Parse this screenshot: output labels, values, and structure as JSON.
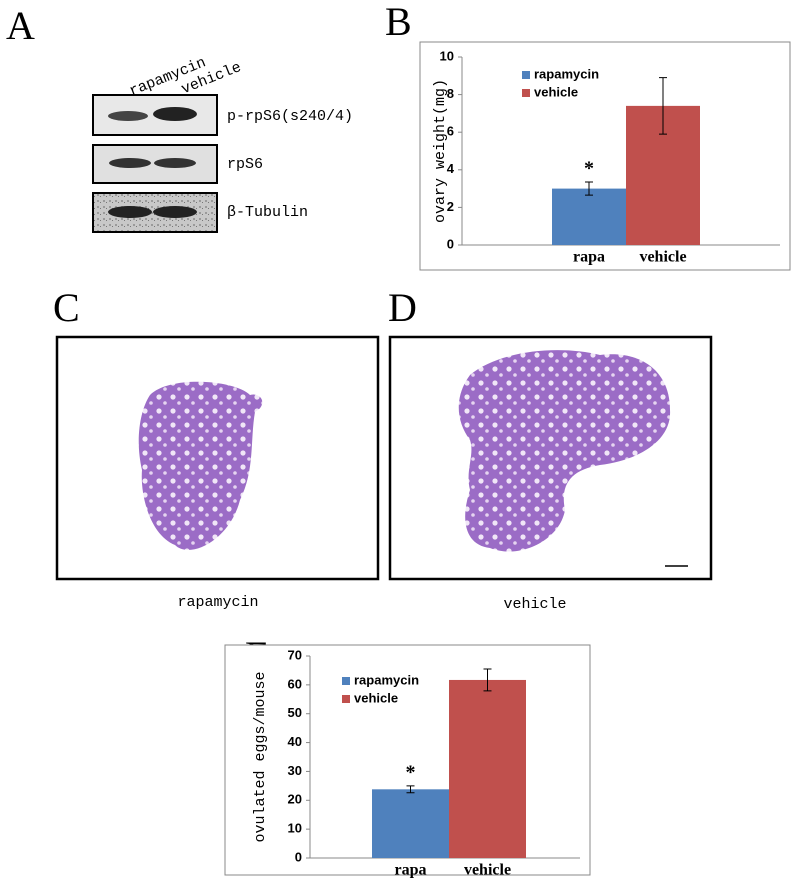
{
  "panels": [
    "A",
    "B",
    "C",
    "D",
    "E"
  ],
  "blot": {
    "lanes": [
      "rapamycin",
      "vehicle"
    ],
    "rows": [
      "p-rpS6(s240/4)",
      "rpS6",
      "β-Tubulin"
    ]
  },
  "histology": {
    "captions": [
      "rapamycin",
      "vehicle"
    ]
  },
  "chart_data": [
    {
      "type": "bar",
      "ylabel": "ovary weight(mg)",
      "categories": [
        "rapa",
        "vehicle"
      ],
      "series": [
        {
          "name": "rapamycin",
          "color": "#4f81bd",
          "values": [
            3.0,
            null
          ],
          "errors": [
            0.35,
            null
          ]
        },
        {
          "name": "vehicle",
          "color": "#c0504d",
          "values": [
            null,
            7.4
          ],
          "errors": [
            null,
            1.5
          ]
        }
      ],
      "annotation": "*",
      "ylim": [
        0,
        10
      ],
      "yticks": [
        0,
        2,
        4,
        6,
        8,
        10
      ],
      "legend": "upper left"
    },
    {
      "type": "bar",
      "ylabel": "ovulated eggs/mouse",
      "categories": [
        "rapa",
        "vehicle"
      ],
      "series": [
        {
          "name": "rapamycin",
          "color": "#4f81bd",
          "values": [
            23.8,
            null
          ],
          "errors": [
            1.2,
            null
          ]
        },
        {
          "name": "vehicle",
          "color": "#c0504d",
          "values": [
            null,
            61.7
          ],
          "errors": [
            null,
            3.8
          ]
        }
      ],
      "annotation": "*",
      "ylim": [
        0,
        70
      ],
      "yticks": [
        0,
        10,
        20,
        30,
        40,
        50,
        60,
        70
      ],
      "legend": "upper left"
    }
  ]
}
